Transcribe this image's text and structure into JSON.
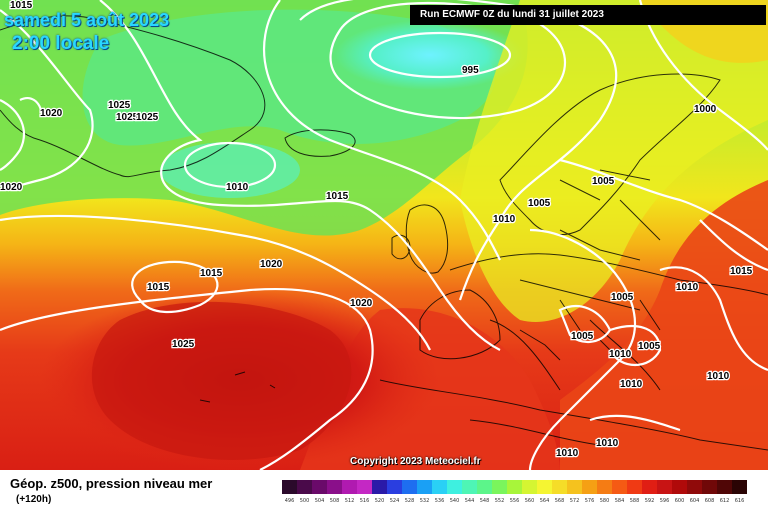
{
  "header": {
    "date": "samedi 5 août 2023",
    "time": "2:00 locale",
    "run": "Run ECMWF 0Z du lundi 31 juillet 2023"
  },
  "map": {
    "copyright": "Copyright 2023 Meteociel.fr",
    "pressure_labels": [
      "1015",
      "1020",
      "1020",
      "1025",
      "1025",
      "1025",
      "995",
      "1000",
      "1010",
      "1015",
      "1005",
      "1010",
      "1005",
      "1015",
      "1015",
      "1020",
      "1020",
      "1025",
      "1005",
      "1005",
      "1010",
      "1010",
      "1005",
      "1015",
      "1010",
      "1010",
      "1010",
      "1010"
    ]
  },
  "legend": {
    "title": "Géop. z500, pression niveau mer",
    "subtitle": "(+120h)",
    "ticks": [
      "496",
      "500",
      "504",
      "508",
      "512",
      "516",
      "520",
      "524",
      "528",
      "532",
      "536",
      "540",
      "544",
      "548",
      "552",
      "556",
      "560",
      "564",
      "568",
      "572",
      "576",
      "580",
      "584",
      "588",
      "592",
      "596",
      "600",
      "604",
      "608",
      "612",
      "616"
    ],
    "colors": [
      "#2b0a2b",
      "#4a0a4a",
      "#6a0a6a",
      "#8a0f8a",
      "#b01ab0",
      "#c428c4",
      "#2a1aa8",
      "#2a3ee0",
      "#1e6ef0",
      "#1aa0f5",
      "#2ad0f5",
      "#3ef0e0",
      "#4ef5b5",
      "#5cf58a",
      "#7af55c",
      "#a8f53a",
      "#d5f532",
      "#f5f532",
      "#f5dd28",
      "#f5c21e",
      "#f5a014",
      "#f57c14",
      "#f55a14",
      "#f03a14",
      "#e01e14",
      "#c81414",
      "#b00a0a",
      "#900a0a",
      "#700808",
      "#500606",
      "#2a0404"
    ]
  }
}
